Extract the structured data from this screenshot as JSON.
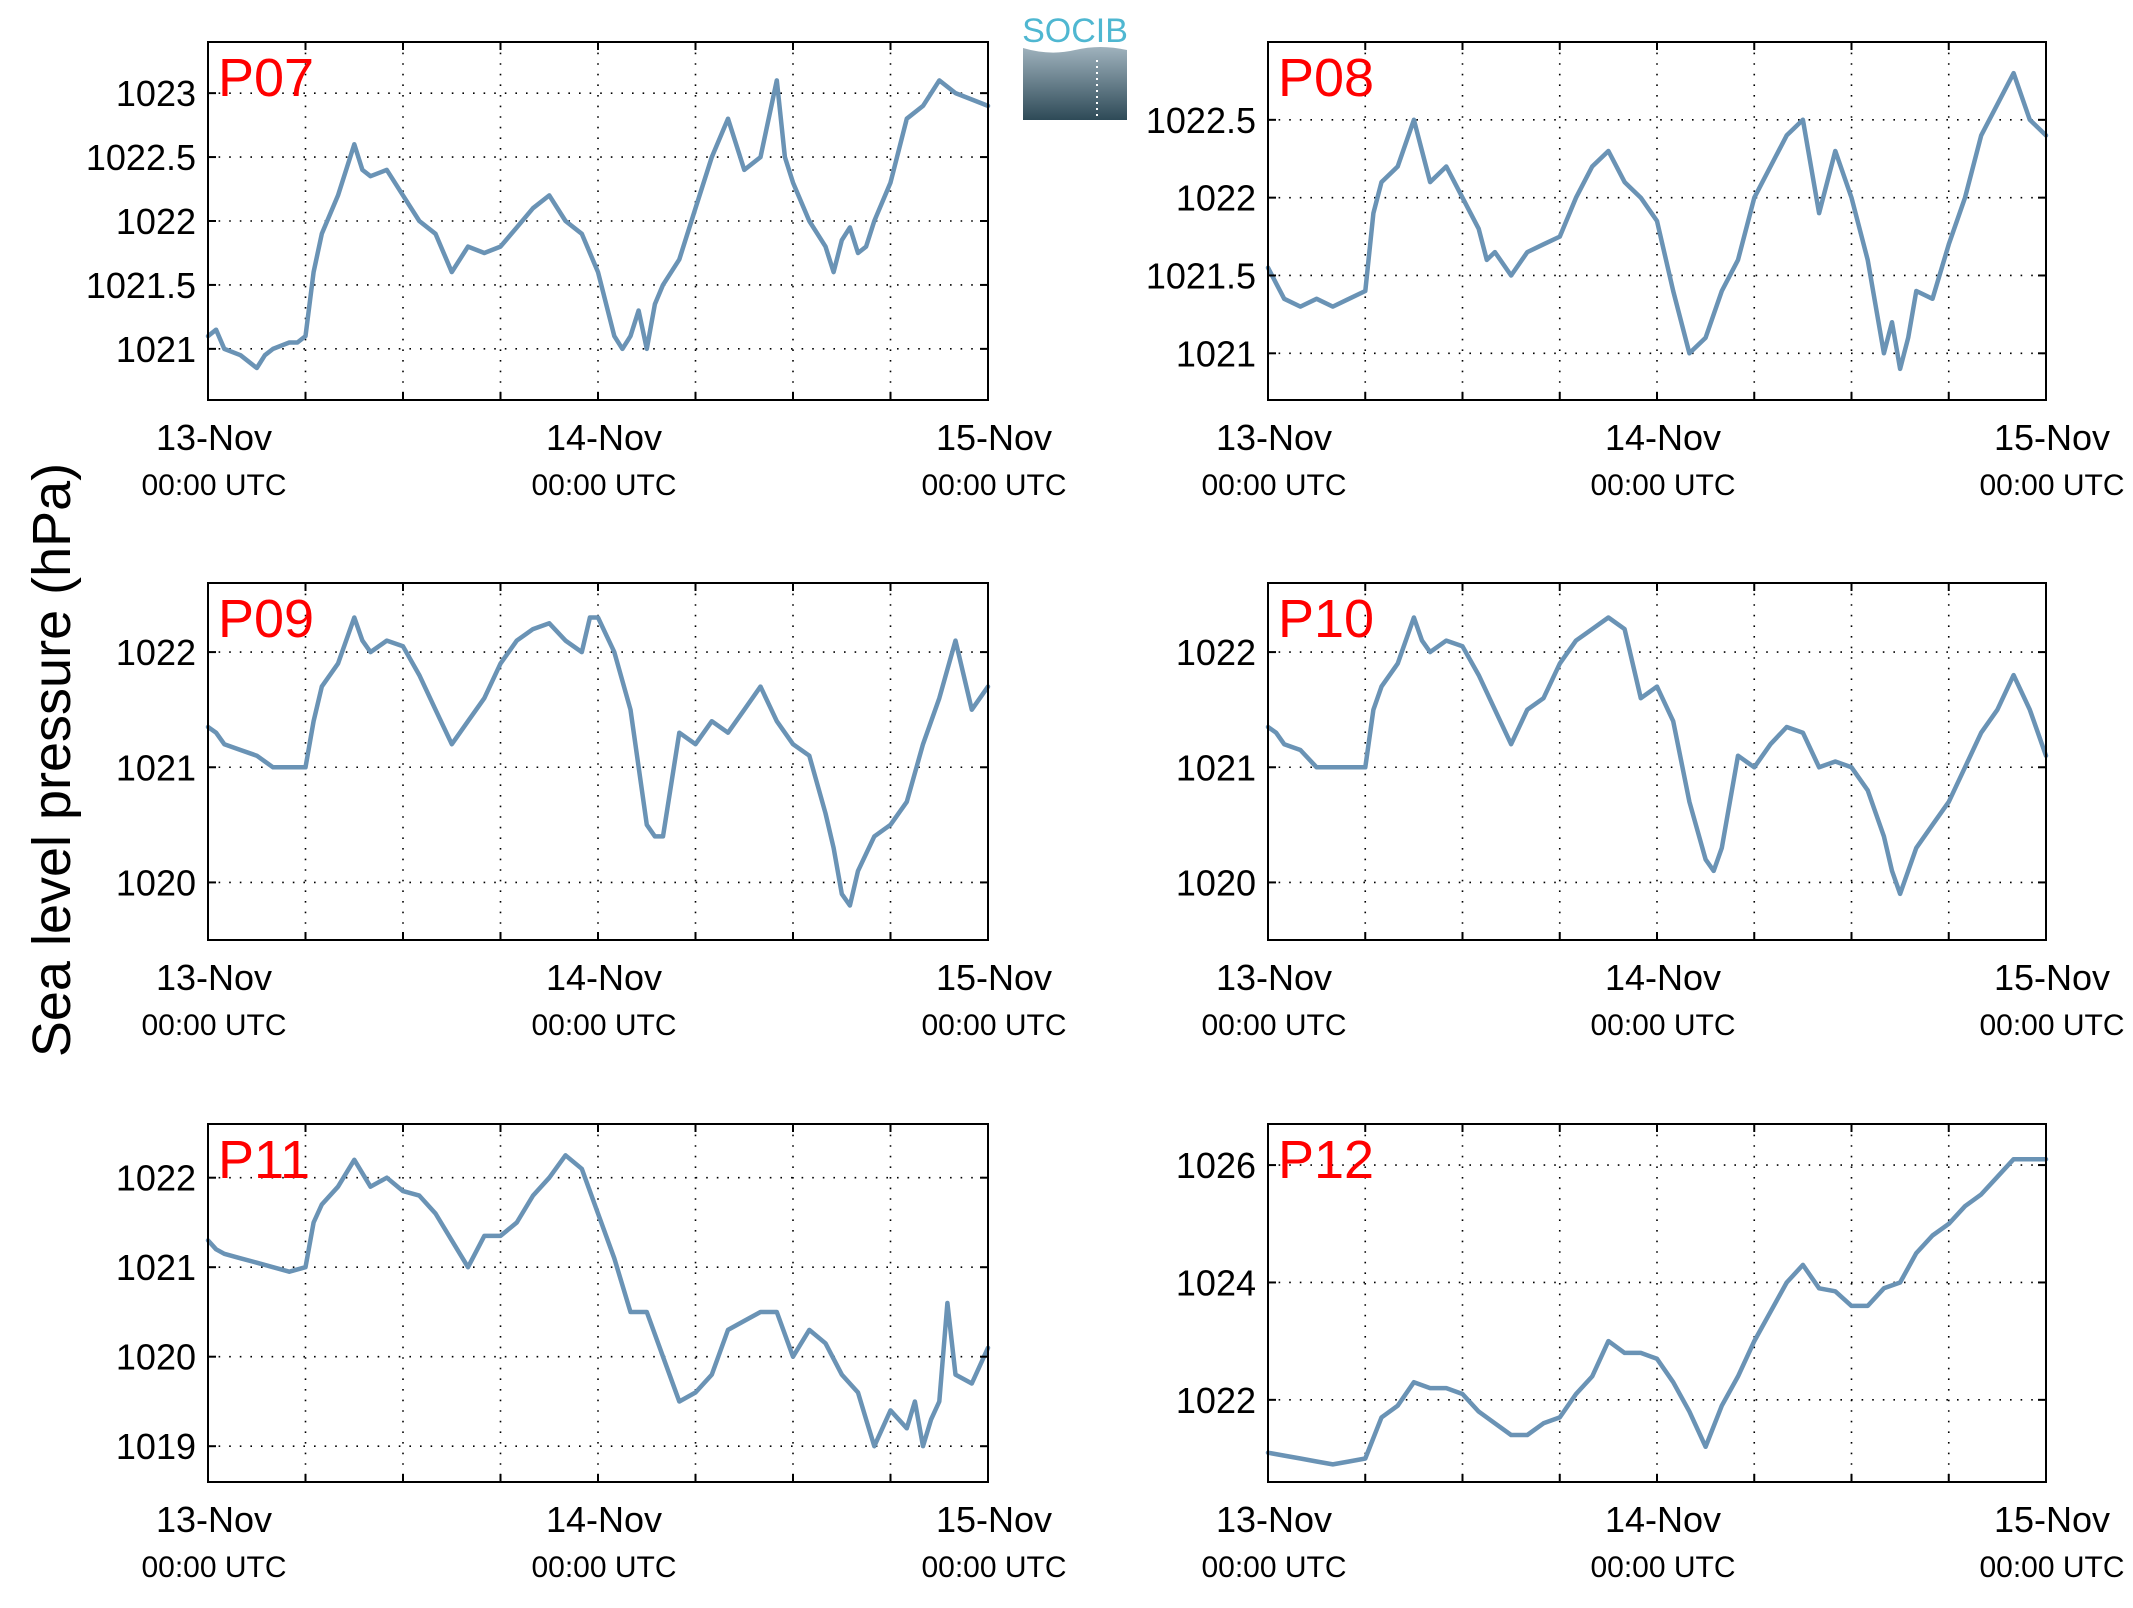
{
  "figure": {
    "ylabel": "Sea level pressure (hPa)",
    "logo_text": "SOCIB",
    "line_color": "#6a93b5",
    "label_color": "#ff0000",
    "grid": "dotted"
  },
  "chart_data": [
    {
      "type": "line",
      "label": "P07",
      "title": "",
      "xlabel": "",
      "ylabel": "Sea level pressure (hPa)",
      "xlim": [
        0,
        48
      ],
      "ylim": [
        1020.6,
        1023.4
      ],
      "xtick_labels": [
        {
          "x": 0,
          "date": "13-Nov",
          "time": "00:00 UTC"
        },
        {
          "x": 24,
          "date": "14-Nov",
          "time": "00:00 UTC"
        },
        {
          "x": 48,
          "date": "15-Nov",
          "time": "00:00 UTC"
        }
      ],
      "yticks": [
        1021,
        1021.5,
        1022,
        1022.5,
        1023
      ],
      "ytick_labels": [
        "1021",
        "1021.5",
        "1022",
        "1022.5",
        "1023"
      ],
      "x": [
        0,
        0.5,
        1,
        2,
        3,
        3.5,
        4,
        5,
        5.5,
        6,
        6.5,
        7,
        8,
        9,
        9.5,
        10,
        11,
        12,
        13,
        14,
        15,
        16,
        17,
        18,
        19,
        20,
        21,
        22,
        23,
        24,
        25,
        25.5,
        26,
        26.5,
        27,
        27.5,
        28,
        29,
        30,
        31,
        32,
        33,
        34,
        35,
        35.5,
        36,
        37,
        38,
        38.5,
        39,
        39.5,
        40,
        40.5,
        41,
        42,
        43,
        44,
        45,
        46,
        47,
        48
      ],
      "y": [
        1021.1,
        1021.15,
        1021,
        1020.95,
        1020.85,
        1020.95,
        1021.0,
        1021.05,
        1021.05,
        1021.1,
        1021.6,
        1021.9,
        1022.2,
        1022.6,
        1022.4,
        1022.35,
        1022.4,
        1022.2,
        1022.0,
        1021.9,
        1021.6,
        1021.8,
        1021.75,
        1021.8,
        1021.95,
        1022.1,
        1022.2,
        1022.0,
        1021.9,
        1021.6,
        1021.1,
        1021.0,
        1021.1,
        1021.3,
        1021.0,
        1021.35,
        1021.5,
        1021.7,
        1022.1,
        1022.5,
        1022.8,
        1022.4,
        1022.5,
        1023.1,
        1022.5,
        1022.3,
        1022.0,
        1021.8,
        1021.6,
        1021.85,
        1021.95,
        1021.75,
        1021.8,
        1022.0,
        1022.3,
        1022.8,
        1022.9,
        1023.1,
        1023.0,
        1022.95,
        1022.9
      ]
    },
    {
      "type": "line",
      "label": "P08",
      "title": "",
      "xlabel": "",
      "ylabel": "Sea level pressure (hPa)",
      "xlim": [
        0,
        48
      ],
      "ylim": [
        1020.7,
        1023.0
      ],
      "xtick_labels": [
        {
          "x": 0,
          "date": "13-Nov",
          "time": "00:00 UTC"
        },
        {
          "x": 24,
          "date": "14-Nov",
          "time": "00:00 UTC"
        },
        {
          "x": 48,
          "date": "15-Nov",
          "time": "00:00 UTC"
        }
      ],
      "yticks": [
        1021,
        1021.5,
        1022,
        1022.5
      ],
      "ytick_labels": [
        "1021",
        "1021.5",
        "1022",
        "1022.5"
      ],
      "x": [
        0,
        0.5,
        1,
        2,
        3,
        4,
        5,
        6,
        6.5,
        7,
        8,
        9,
        9.5,
        10,
        11,
        12,
        13,
        13.5,
        14,
        15,
        16,
        17,
        18,
        19,
        20,
        21,
        22,
        23,
        24,
        25,
        26,
        27,
        28,
        29,
        30,
        31,
        32,
        33,
        34,
        35,
        36,
        37,
        38,
        38.5,
        39,
        39.5,
        40,
        41,
        42,
        43,
        44,
        45,
        46,
        47,
        48
      ],
      "y": [
        1021.55,
        1021.45,
        1021.35,
        1021.3,
        1021.35,
        1021.3,
        1021.35,
        1021.4,
        1021.9,
        1022.1,
        1022.2,
        1022.5,
        1022.3,
        1022.1,
        1022.2,
        1022.0,
        1021.8,
        1021.6,
        1021.65,
        1021.5,
        1021.65,
        1021.7,
        1021.75,
        1022.0,
        1022.2,
        1022.3,
        1022.1,
        1022.0,
        1021.85,
        1021.4,
        1021.0,
        1021.1,
        1021.4,
        1021.6,
        1022.0,
        1022.2,
        1022.4,
        1022.5,
        1021.9,
        1022.3,
        1022.0,
        1021.6,
        1021.0,
        1021.2,
        1020.9,
        1021.1,
        1021.4,
        1021.35,
        1021.7,
        1022.0,
        1022.4,
        1022.6,
        1022.8,
        1022.5,
        1022.4
      ]
    },
    {
      "type": "line",
      "label": "P09",
      "title": "",
      "xlabel": "",
      "ylabel": "Sea level pressure (hPa)",
      "xlim": [
        0,
        48
      ],
      "ylim": [
        1019.5,
        1022.6
      ],
      "xtick_labels": [
        {
          "x": 0,
          "date": "13-Nov",
          "time": "00:00 UTC"
        },
        {
          "x": 24,
          "date": "14-Nov",
          "time": "00:00 UTC"
        },
        {
          "x": 48,
          "date": "15-Nov",
          "time": "00:00 UTC"
        }
      ],
      "yticks": [
        1020,
        1021,
        1022
      ],
      "ytick_labels": [
        "1020",
        "1021",
        "1022"
      ],
      "x": [
        0,
        0.5,
        1,
        2,
        3,
        4,
        5,
        6,
        6.5,
        7,
        8,
        9,
        9.5,
        10,
        11,
        12,
        13,
        14,
        15,
        16,
        17,
        18,
        19,
        20,
        21,
        22,
        23,
        23.5,
        24,
        25,
        26,
        27,
        27.5,
        28,
        29,
        30,
        31,
        32,
        33,
        34,
        35,
        36,
        37,
        38,
        38.5,
        39,
        39.5,
        40,
        41,
        42,
        43,
        44,
        45,
        46,
        47,
        48
      ],
      "y": [
        1021.35,
        1021.3,
        1021.2,
        1021.15,
        1021.1,
        1021.0,
        1021.0,
        1021.0,
        1021.4,
        1021.7,
        1021.9,
        1022.3,
        1022.1,
        1022.0,
        1022.1,
        1022.05,
        1021.8,
        1021.5,
        1021.2,
        1021.4,
        1021.6,
        1021.9,
        1022.1,
        1022.2,
        1022.25,
        1022.1,
        1022.0,
        1022.3,
        1022.3,
        1022.0,
        1021.5,
        1020.5,
        1020.4,
        1020.4,
        1021.3,
        1021.2,
        1021.4,
        1021.3,
        1021.5,
        1021.7,
        1021.4,
        1021.2,
        1021.1,
        1020.6,
        1020.3,
        1019.9,
        1019.8,
        1020.1,
        1020.4,
        1020.5,
        1020.7,
        1021.2,
        1021.6,
        1022.1,
        1021.5,
        1021.7
      ]
    },
    {
      "type": "line",
      "label": "P10",
      "title": "",
      "xlabel": "",
      "ylabel": "Sea level pressure (hPa)",
      "xlim": [
        0,
        48
      ],
      "ylim": [
        1019.5,
        1022.6
      ],
      "xtick_labels": [
        {
          "x": 0,
          "date": "13-Nov",
          "time": "00:00 UTC"
        },
        {
          "x": 24,
          "date": "14-Nov",
          "time": "00:00 UTC"
        },
        {
          "x": 48,
          "date": "15-Nov",
          "time": "00:00 UTC"
        }
      ],
      "yticks": [
        1020,
        1021,
        1022
      ],
      "ytick_labels": [
        "1020",
        "1021",
        "1022"
      ],
      "x": [
        0,
        0.5,
        1,
        2,
        3,
        4,
        5,
        6,
        6.5,
        7,
        8,
        9,
        9.5,
        10,
        11,
        12,
        13,
        14,
        15,
        16,
        17,
        18,
        19,
        20,
        21,
        22,
        23,
        24,
        25,
        26,
        27,
        27.5,
        28,
        29,
        30,
        31,
        32,
        33,
        34,
        35,
        36,
        37,
        38,
        38.5,
        39,
        40,
        41,
        42,
        43,
        44,
        45,
        46,
        47,
        48
      ],
      "y": [
        1021.35,
        1021.3,
        1021.2,
        1021.15,
        1021.0,
        1021.0,
        1021.0,
        1021.0,
        1021.5,
        1021.7,
        1021.9,
        1022.3,
        1022.1,
        1022.0,
        1022.1,
        1022.05,
        1021.8,
        1021.5,
        1021.2,
        1021.5,
        1021.6,
        1021.9,
        1022.1,
        1022.2,
        1022.3,
        1022.2,
        1021.6,
        1021.7,
        1021.4,
        1020.7,
        1020.2,
        1020.1,
        1020.3,
        1021.1,
        1021.0,
        1021.2,
        1021.35,
        1021.3,
        1021.0,
        1021.05,
        1021.0,
        1020.8,
        1020.4,
        1020.1,
        1019.9,
        1020.3,
        1020.5,
        1020.7,
        1021.0,
        1021.3,
        1021.5,
        1021.8,
        1021.5,
        1021.1
      ]
    },
    {
      "type": "line",
      "label": "P11",
      "title": "",
      "xlabel": "",
      "ylabel": "Sea level pressure (hPa)",
      "xlim": [
        0,
        48
      ],
      "ylim": [
        1018.6,
        1022.6
      ],
      "xtick_labels": [
        {
          "x": 0,
          "date": "13-Nov",
          "time": "00:00 UTC"
        },
        {
          "x": 24,
          "date": "14-Nov",
          "time": "00:00 UTC"
        },
        {
          "x": 48,
          "date": "15-Nov",
          "time": "00:00 UTC"
        }
      ],
      "yticks": [
        1019,
        1020,
        1021,
        1022
      ],
      "ytick_labels": [
        "1019",
        "1020",
        "1021",
        "1022"
      ],
      "x": [
        0,
        0.5,
        1,
        2,
        3,
        4,
        5,
        6,
        6.5,
        7,
        8,
        9,
        10,
        11,
        12,
        13,
        14,
        15,
        16,
        17,
        18,
        19,
        20,
        21,
        22,
        23,
        24,
        25,
        26,
        27,
        28,
        29,
        30,
        31,
        32,
        33,
        34,
        35,
        36,
        37,
        38,
        39,
        40,
        40.5,
        41,
        41.5,
        42,
        43,
        43.5,
        44,
        44.5,
        45,
        45.5,
        46,
        47,
        48
      ],
      "y": [
        1021.3,
        1021.2,
        1021.15,
        1021.1,
        1021.05,
        1021.0,
        1020.95,
        1021.0,
        1021.5,
        1021.7,
        1021.9,
        1022.2,
        1021.9,
        1022.0,
        1021.85,
        1021.8,
        1021.6,
        1021.3,
        1021.0,
        1021.35,
        1021.35,
        1021.5,
        1021.8,
        1022.0,
        1022.25,
        1022.1,
        1021.6,
        1021.1,
        1020.5,
        1020.5,
        1020.0,
        1019.5,
        1019.6,
        1019.8,
        1020.3,
        1020.4,
        1020.5,
        1020.5,
        1020.0,
        1020.3,
        1020.15,
        1019.8,
        1019.6,
        1019.3,
        1019.0,
        1019.2,
        1019.4,
        1019.2,
        1019.5,
        1019.0,
        1019.3,
        1019.5,
        1020.6,
        1019.8,
        1019.7,
        1020.1
      ]
    },
    {
      "type": "line",
      "label": "P12",
      "title": "",
      "xlabel": "",
      "ylabel": "Sea level pressure (hPa)",
      "xlim": [
        0,
        48
      ],
      "ylim": [
        1020.6,
        1026.7
      ],
      "xtick_labels": [
        {
          "x": 0,
          "date": "13-Nov",
          "time": "00:00 UTC"
        },
        {
          "x": 24,
          "date": "14-Nov",
          "time": "00:00 UTC"
        },
        {
          "x": 48,
          "date": "15-Nov",
          "time": "00:00 UTC"
        }
      ],
      "yticks": [
        1022,
        1024,
        1026
      ],
      "ytick_labels": [
        "1022",
        "1024",
        "1026"
      ],
      "x": [
        0,
        1,
        2,
        3,
        4,
        5,
        6,
        7,
        8,
        9,
        10,
        11,
        12,
        13,
        14,
        15,
        16,
        17,
        18,
        19,
        20,
        21,
        22,
        23,
        24,
        25,
        26,
        27,
        28,
        29,
        30,
        31,
        32,
        33,
        34,
        35,
        36,
        37,
        38,
        39,
        40,
        41,
        42,
        43,
        44,
        45,
        46,
        47,
        48
      ],
      "y": [
        1021.1,
        1021.05,
        1021.0,
        1020.95,
        1020.9,
        1020.95,
        1021.0,
        1021.7,
        1021.9,
        1022.3,
        1022.2,
        1022.2,
        1022.1,
        1021.8,
        1021.6,
        1021.4,
        1021.4,
        1021.6,
        1021.7,
        1022.1,
        1022.4,
        1023.0,
        1022.8,
        1022.8,
        1022.7,
        1022.3,
        1021.8,
        1021.2,
        1021.9,
        1022.4,
        1023.0,
        1023.5,
        1024.0,
        1024.3,
        1023.9,
        1023.85,
        1023.6,
        1023.6,
        1023.9,
        1024.0,
        1024.5,
        1024.8,
        1025.0,
        1025.3,
        1025.5,
        1025.8,
        1026.1,
        1026.1,
        1026.1
      ]
    }
  ]
}
